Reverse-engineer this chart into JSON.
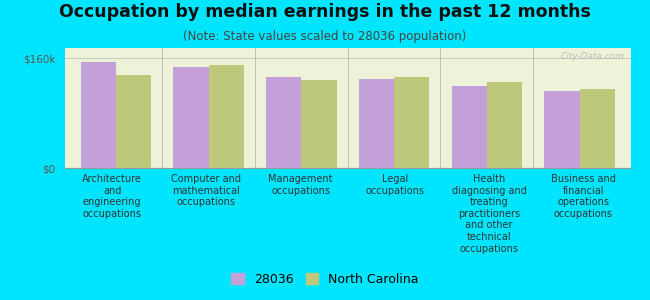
{
  "title": "Occupation by median earnings in the past 12 months",
  "subtitle": "(Note: State values scaled to 28036 population)",
  "background_color": "#00e5ff",
  "plot_bg_color": "#eef2d8",
  "categories": [
    "Architecture\nand\nengineering\noccupations",
    "Computer and\nmathematical\noccupations",
    "Management\noccupations",
    "Legal\noccupations",
    "Health\ndiagnosing and\ntreating\npractitioners\nand other\ntechnical\noccupations",
    "Business and\nfinancial\noperations\noccupations"
  ],
  "values_28036": [
    155000,
    148000,
    132000,
    130000,
    120000,
    112000
  ],
  "values_nc": [
    135000,
    150000,
    128000,
    132000,
    125000,
    115000
  ],
  "color_28036": "#c4a0d8",
  "color_nc": "#bec87a",
  "ylim": [
    0,
    175000
  ],
  "ytick_vals": [
    0,
    160000
  ],
  "ytick_labels": [
    "$0",
    "$160k"
  ],
  "legend_labels": [
    "28036",
    "North Carolina"
  ],
  "bar_width": 0.38,
  "title_fontsize": 12.5,
  "subtitle_fontsize": 8.5,
  "tick_fontsize": 7.5,
  "legend_fontsize": 9,
  "watermark": "City-Data.com"
}
